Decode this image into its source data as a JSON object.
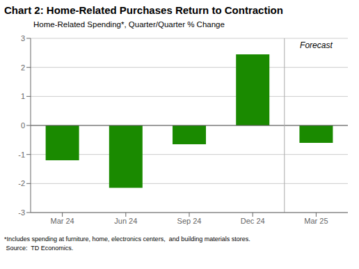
{
  "chart_data": {
    "type": "bar",
    "title": "Chart 2: Home-Related Purchases Return to Contraction",
    "subtitle": "Home-Related Spending*, Quarter/Quarter % Change",
    "categories": [
      "Mar 24",
      "Jun 24",
      "Sep 24",
      "Dec 24",
      "Mar 25"
    ],
    "values": [
      -1.2,
      -2.15,
      -0.65,
      2.45,
      -0.6
    ],
    "color": "#1a8a00",
    "ylim": [
      -3,
      3
    ],
    "yticks": [
      -3,
      -2,
      -1,
      0,
      1,
      2,
      3
    ],
    "grid": true,
    "annotations": [
      {
        "text": "Forecast",
        "x": "Mar 25"
      }
    ],
    "footnotes": [
      "*Includes spending at furniture, home, electronics centers,  and building materials stores.",
      " Source:  TD Economics."
    ]
  }
}
